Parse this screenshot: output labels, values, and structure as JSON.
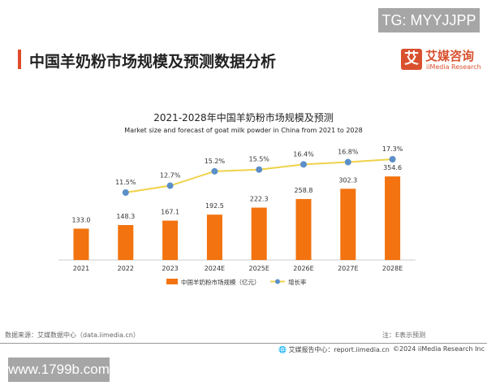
{
  "watermark_top": "TG: MYYJJPP",
  "page_title": "中国羊奶粉市场规模及预测数据分析",
  "logo": {
    "mark": "艾",
    "cn": "艾媒咨询",
    "en": "iiMedia Research"
  },
  "chart_data": {
    "type": "bar+line",
    "title": "2021-2028年中国羊奶粉市场规模及预测",
    "subtitle": "Market size and forecast of goat milk powder in China from 2021 to 2028",
    "categories": [
      "2021",
      "2022",
      "2023",
      "2024E",
      "2025E",
      "2026E",
      "2027E",
      "2028E"
    ],
    "series": [
      {
        "name": "中国羊奶粉市场规模（亿元）",
        "type": "bar",
        "color": "#f2730f",
        "values": [
          133.0,
          148.3,
          167.1,
          192.5,
          222.3,
          258.8,
          302.3,
          354.6
        ],
        "labels": [
          "133.0",
          "148.3",
          "167.1",
          "192.5",
          "222.3",
          "258.8",
          "302.3",
          "354.6"
        ]
      },
      {
        "name": "增长率",
        "type": "line",
        "color": "#f0d24a",
        "marker_color": "#5b8fc7",
        "values": [
          null,
          11.5,
          12.7,
          15.2,
          15.5,
          16.4,
          16.8,
          17.3
        ],
        "labels": [
          "",
          "11.5%",
          "12.7%",
          "15.2%",
          "15.5%",
          "16.4%",
          "16.8%",
          "17.3%"
        ]
      }
    ],
    "legend": "bottom"
  },
  "footer": {
    "source": "数据来源：艾媒数据中心（data.iimedia.cn）",
    "note": "注：E表示预测",
    "report": "艾媒报告中心：report.iimedia.cn",
    "copyright": "©2024  iiMedia Research  Inc"
  },
  "watermark_bottom": "www.1799b.com"
}
